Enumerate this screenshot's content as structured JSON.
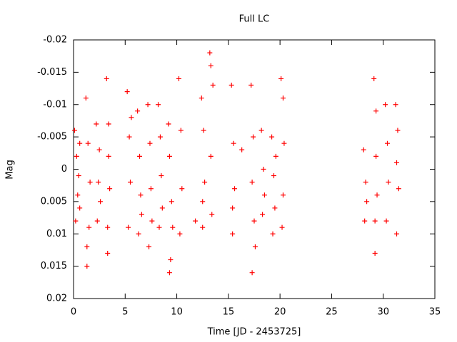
{
  "chart_data": {
    "type": "scatter",
    "title": "Full LC",
    "x_label": "Time [JD - 2453725]",
    "y_label": "Mag",
    "xlim": [
      0,
      35
    ],
    "xticks": [
      0,
      5,
      10,
      15,
      20,
      25,
      30,
      35
    ],
    "ylim": [
      0.02,
      -0.02
    ],
    "yticks": [
      -0.02,
      -0.015,
      -0.01,
      -0.005,
      0,
      0.005,
      0.01,
      0.015,
      0.02
    ],
    "color": "#ff0000",
    "x": [
      0.1,
      0.2,
      0.3,
      0.4,
      0.5,
      0.6,
      0.6,
      1.2,
      1.3,
      1.4,
      1.5,
      1.6,
      1.3,
      2.2,
      2.3,
      2.4,
      2.5,
      2.6,
      3.2,
      3.3,
      3.4,
      3.5,
      3.3,
      3.4,
      5.2,
      5.3,
      5.4,
      5.5,
      5.6,
      6.2,
      6.3,
      6.4,
      6.5,
      6.6,
      7.2,
      7.3,
      7.4,
      7.5,
      7.6,
      8.2,
      8.3,
      8.4,
      8.5,
      8.6,
      9.2,
      9.3,
      9.4,
      9.5,
      9.6,
      9.3,
      10.2,
      10.3,
      10.4,
      10.5,
      11.8,
      12.4,
      12.5,
      12.6,
      12.7,
      12.5,
      13.2,
      13.3,
      13.4,
      13.3,
      13.5,
      15.3,
      15.4,
      15.5,
      15.6,
      15.4,
      16.3,
      17.2,
      17.3,
      17.4,
      17.5,
      17.6,
      17.3,
      18.2,
      18.3,
      18.4,
      18.5,
      19.2,
      19.3,
      19.4,
      19.5,
      19.6,
      20.1,
      20.2,
      20.3,
      20.4,
      20.3,
      28.1,
      28.2,
      28.3,
      28.4,
      29.1,
      29.2,
      29.3,
      29.4,
      29.2,
      29.3,
      30.2,
      30.3,
      30.4,
      30.5,
      31.2,
      31.3,
      31.4,
      31.5,
      31.3
    ],
    "y": [
      -0.006,
      0.008,
      -0.002,
      0.004,
      0.001,
      -0.004,
      0.006,
      -0.011,
      0.015,
      -0.004,
      0.009,
      0.002,
      0.012,
      -0.007,
      0.008,
      0.002,
      -0.003,
      0.005,
      -0.014,
      0.013,
      -0.007,
      0.003,
      0.009,
      -0.002,
      -0.012,
      0.009,
      -0.005,
      0.002,
      -0.008,
      -0.009,
      0.01,
      -0.002,
      0.004,
      0.007,
      -0.01,
      0.012,
      -0.004,
      0.003,
      0.008,
      -0.01,
      0.009,
      -0.005,
      0.001,
      0.006,
      -0.007,
      0.016,
      0.014,
      0.005,
      0.009,
      -0.002,
      -0.014,
      0.01,
      -0.006,
      0.003,
      0.008,
      -0.011,
      0.009,
      -0.006,
      0.002,
      0.005,
      -0.018,
      -0.016,
      0.007,
      -0.002,
      -0.013,
      -0.013,
      0.01,
      -0.004,
      0.003,
      0.006,
      -0.003,
      -0.013,
      0.016,
      -0.005,
      0.008,
      0.012,
      0.002,
      -0.006,
      0.007,
      0.0,
      0.004,
      -0.005,
      0.01,
      0.001,
      0.006,
      -0.002,
      -0.014,
      0.009,
      -0.011,
      -0.004,
      0.004,
      -0.003,
      0.008,
      0.002,
      0.005,
      -0.014,
      0.013,
      -0.009,
      0.004,
      0.008,
      -0.002,
      -0.01,
      0.008,
      -0.004,
      0.002,
      -0.01,
      0.01,
      -0.006,
      0.003,
      -0.001
    ]
  }
}
